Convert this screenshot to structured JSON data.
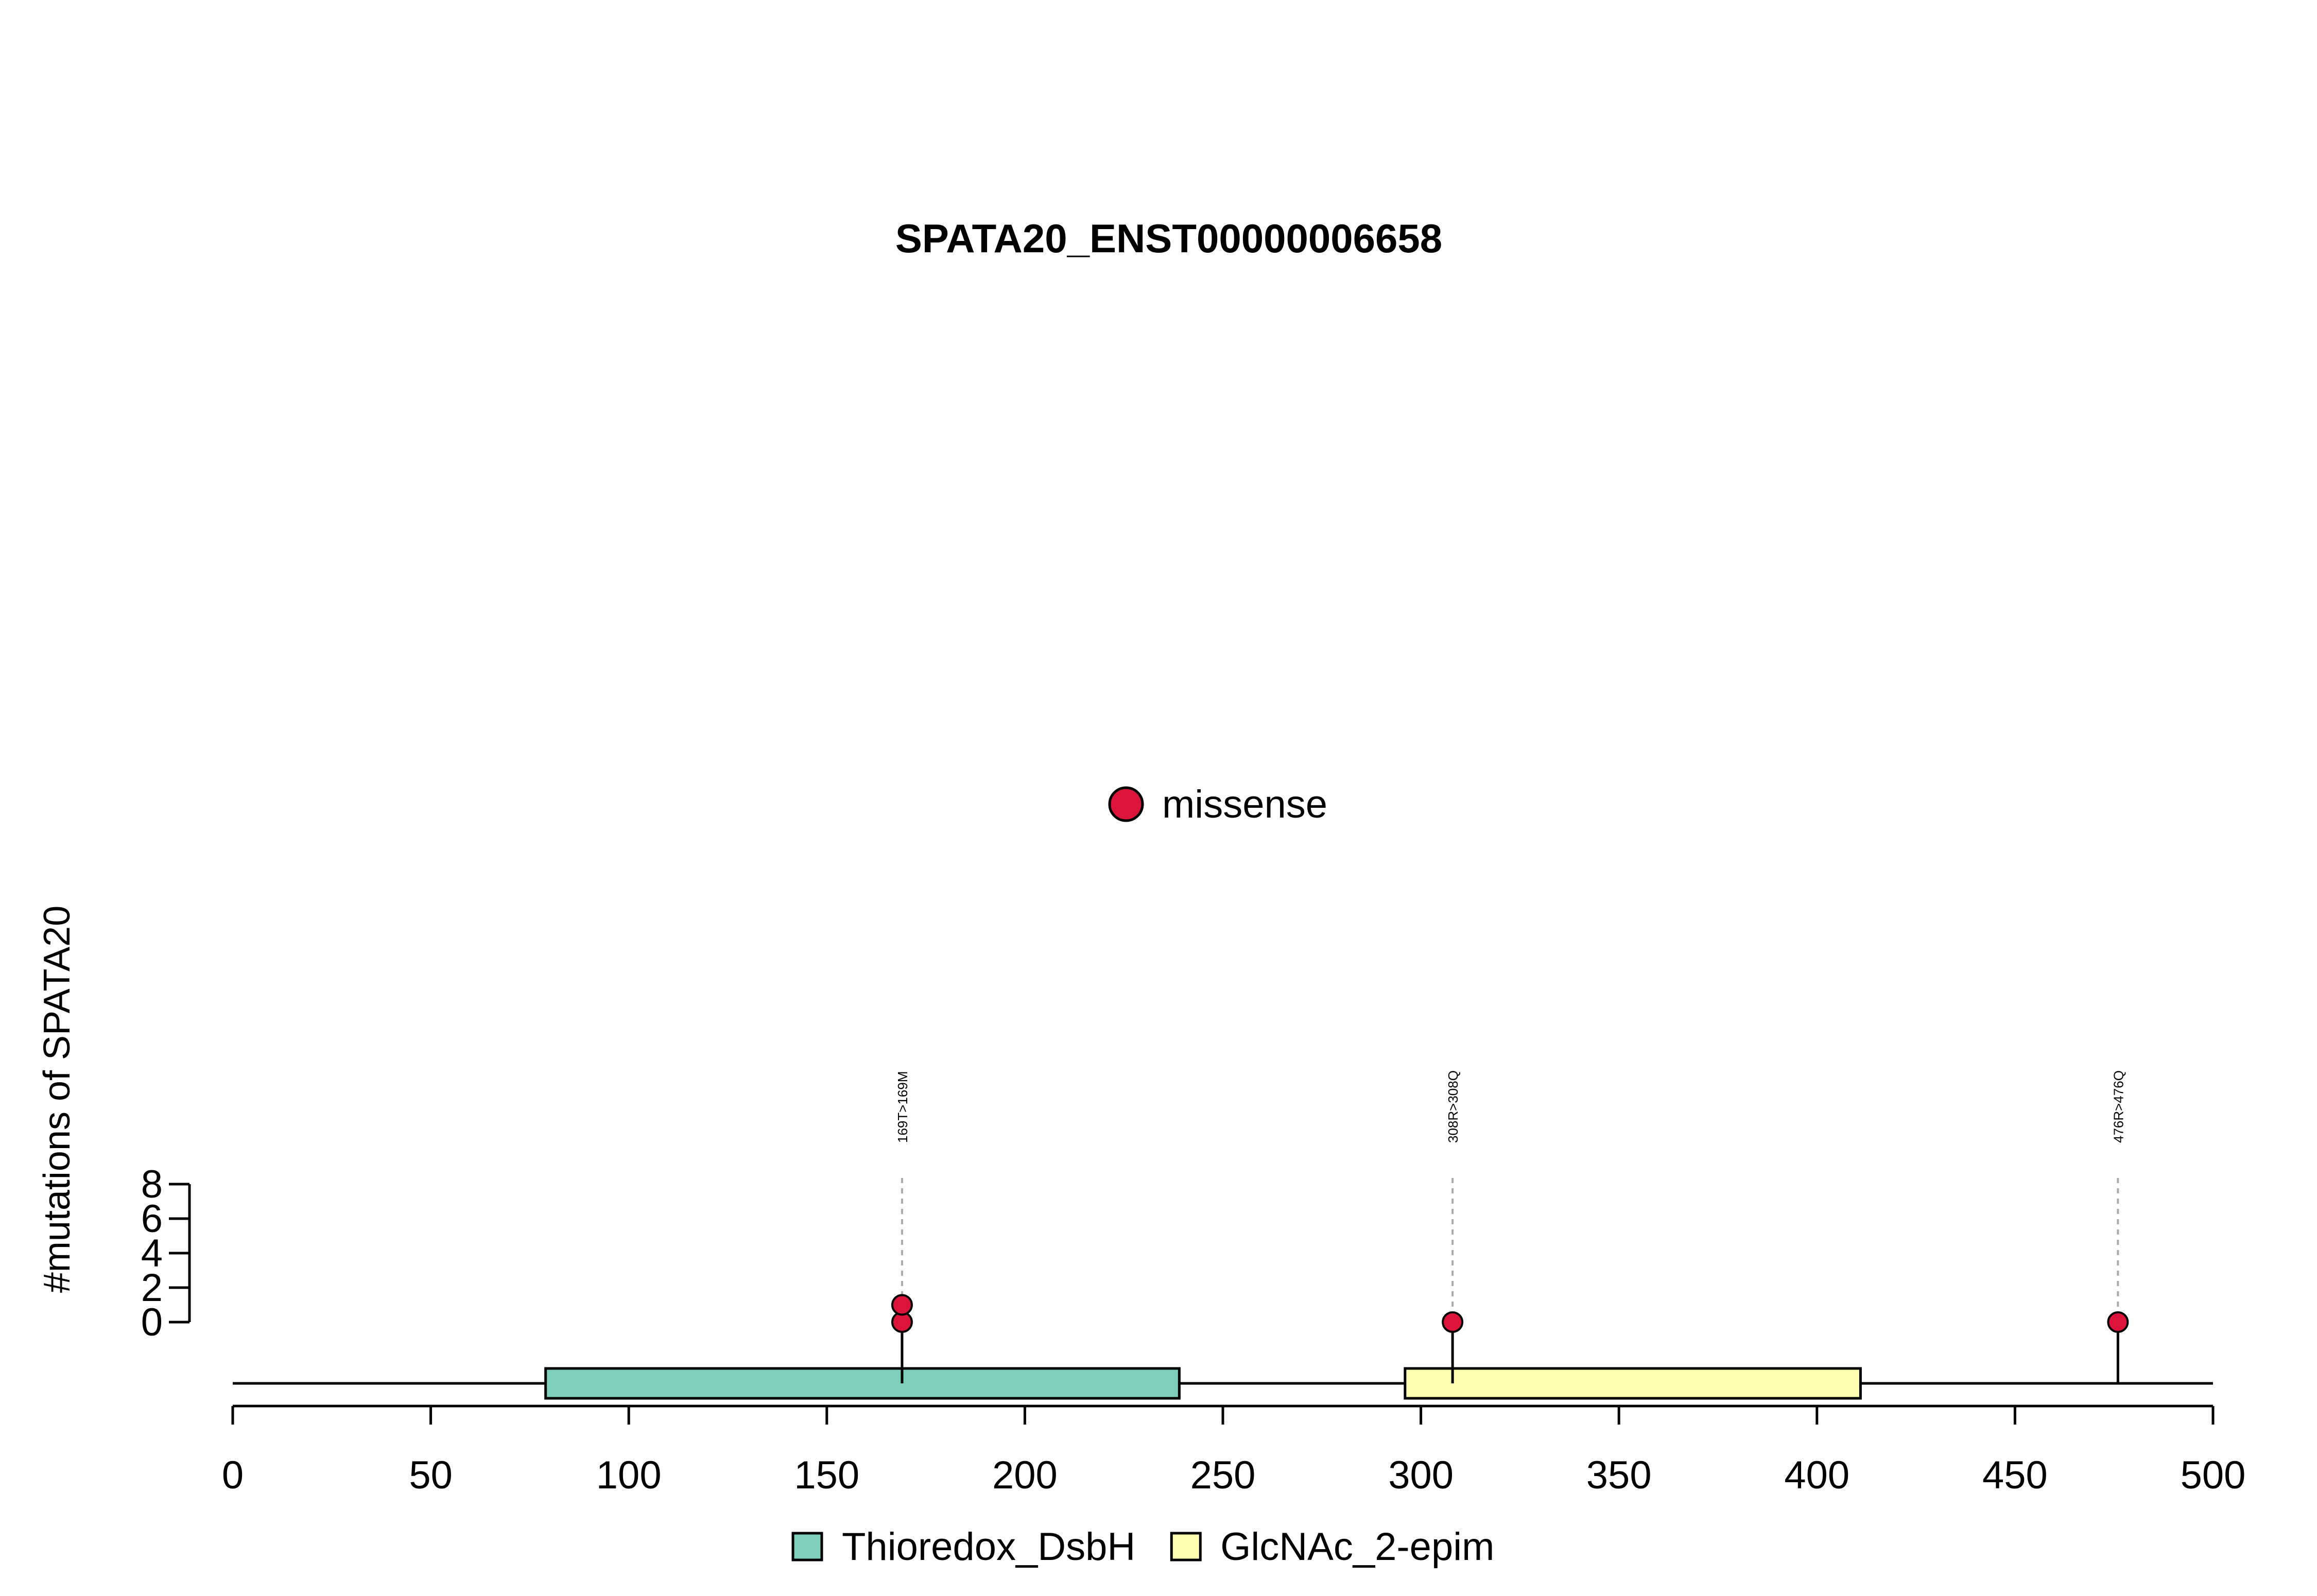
{
  "chart_data": {
    "type": "lollipop",
    "title": "SPATA20_ENST00000006658",
    "ylabel": "#mutations of SPATA20",
    "xlim": [
      0,
      500
    ],
    "x_ticks": [
      0,
      50,
      100,
      150,
      200,
      250,
      300,
      350,
      400,
      450,
      500
    ],
    "y_ticks": [
      0,
      2,
      4,
      6,
      8
    ],
    "protein_length": 500,
    "domains": [
      {
        "name": "Thioredox_DsbH",
        "start": 79,
        "end": 239,
        "color": "#7fcdbb"
      },
      {
        "name": "GlcNAc_2-epim",
        "start": 296,
        "end": 411,
        "color": "#ffffb2"
      }
    ],
    "mutations": [
      {
        "position": 169,
        "label": "169T>169M",
        "count": 2,
        "type": "missense"
      },
      {
        "position": 308,
        "label": "308R>308Q",
        "count": 1,
        "type": "missense"
      },
      {
        "position": 476,
        "label": "476R>476Q",
        "count": 1,
        "type": "missense"
      }
    ],
    "mutation_legend": [
      {
        "label": "missense",
        "color": "#dc143c"
      }
    ]
  }
}
